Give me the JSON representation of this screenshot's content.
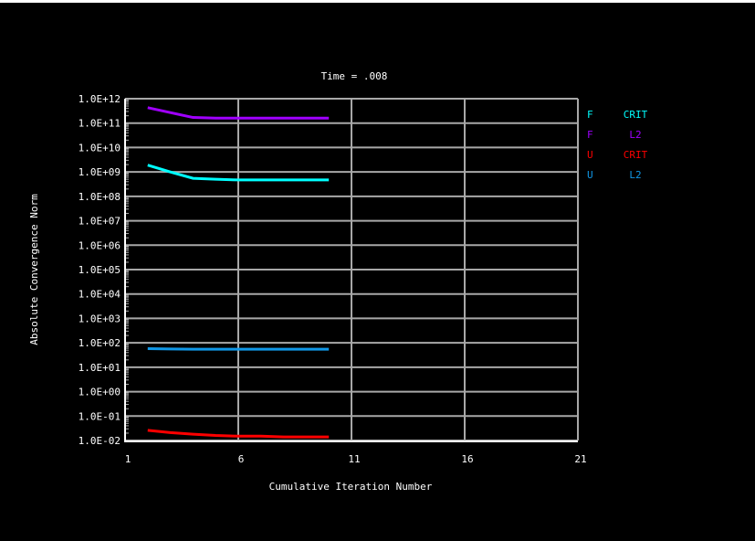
{
  "chart_data": {
    "type": "line",
    "title": "Time = .008",
    "xlabel": "Cumulative Iteration Number",
    "ylabel": "Absolute Convergence Norm",
    "xlim": [
      1,
      21
    ],
    "x_ticks": [
      "1",
      "6",
      "11",
      "16",
      "21"
    ],
    "ylim": [
      0.01,
      1000000000000.0
    ],
    "y_scale": "log",
    "y_ticks": [
      "1.0E+12",
      "1.0E+11",
      "1.0E+10",
      "1.0E+09",
      "1.0E+08",
      "1.0E+07",
      "1.0E+06",
      "1.0E+05",
      "1.0E+04",
      "1.0E+03",
      "1.0E+02",
      "1.0E+01",
      "1.0E+00",
      "1.0E-01",
      "1.0E-02"
    ],
    "grid": true,
    "legend_placement": "right",
    "x": [
      2,
      3,
      4,
      5,
      6,
      7,
      8,
      9,
      10
    ],
    "series": [
      {
        "name": "F CRIT",
        "label_a": "F",
        "label_b": "CRIT",
        "color": "#00ffff",
        "values": [
          1900000000.0,
          1000000000.0,
          550000000.0,
          500000000.0,
          470000000.0,
          470000000.0,
          470000000.0,
          470000000.0,
          470000000.0
        ]
      },
      {
        "name": "F L2",
        "label_a": "F",
        "label_b": "L2",
        "color": "#a000ff",
        "values": [
          430000000000.0,
          270000000000.0,
          170000000000.0,
          160000000000.0,
          160000000000.0,
          160000000000.0,
          160000000000.0,
          160000000000.0,
          160000000000.0
        ]
      },
      {
        "name": "U CRIT",
        "label_a": "U",
        "label_b": "CRIT",
        "color": "#ff0000",
        "values": [
          0.026,
          0.021,
          0.018,
          0.016,
          0.015,
          0.015,
          0.014,
          0.014,
          0.014
        ]
      },
      {
        "name": "U L2",
        "label_a": "U",
        "label_b": "L2",
        "color": "#1098e8",
        "values": [
          58,
          56,
          55,
          55,
          55,
          55,
          55,
          55,
          55
        ]
      }
    ]
  }
}
